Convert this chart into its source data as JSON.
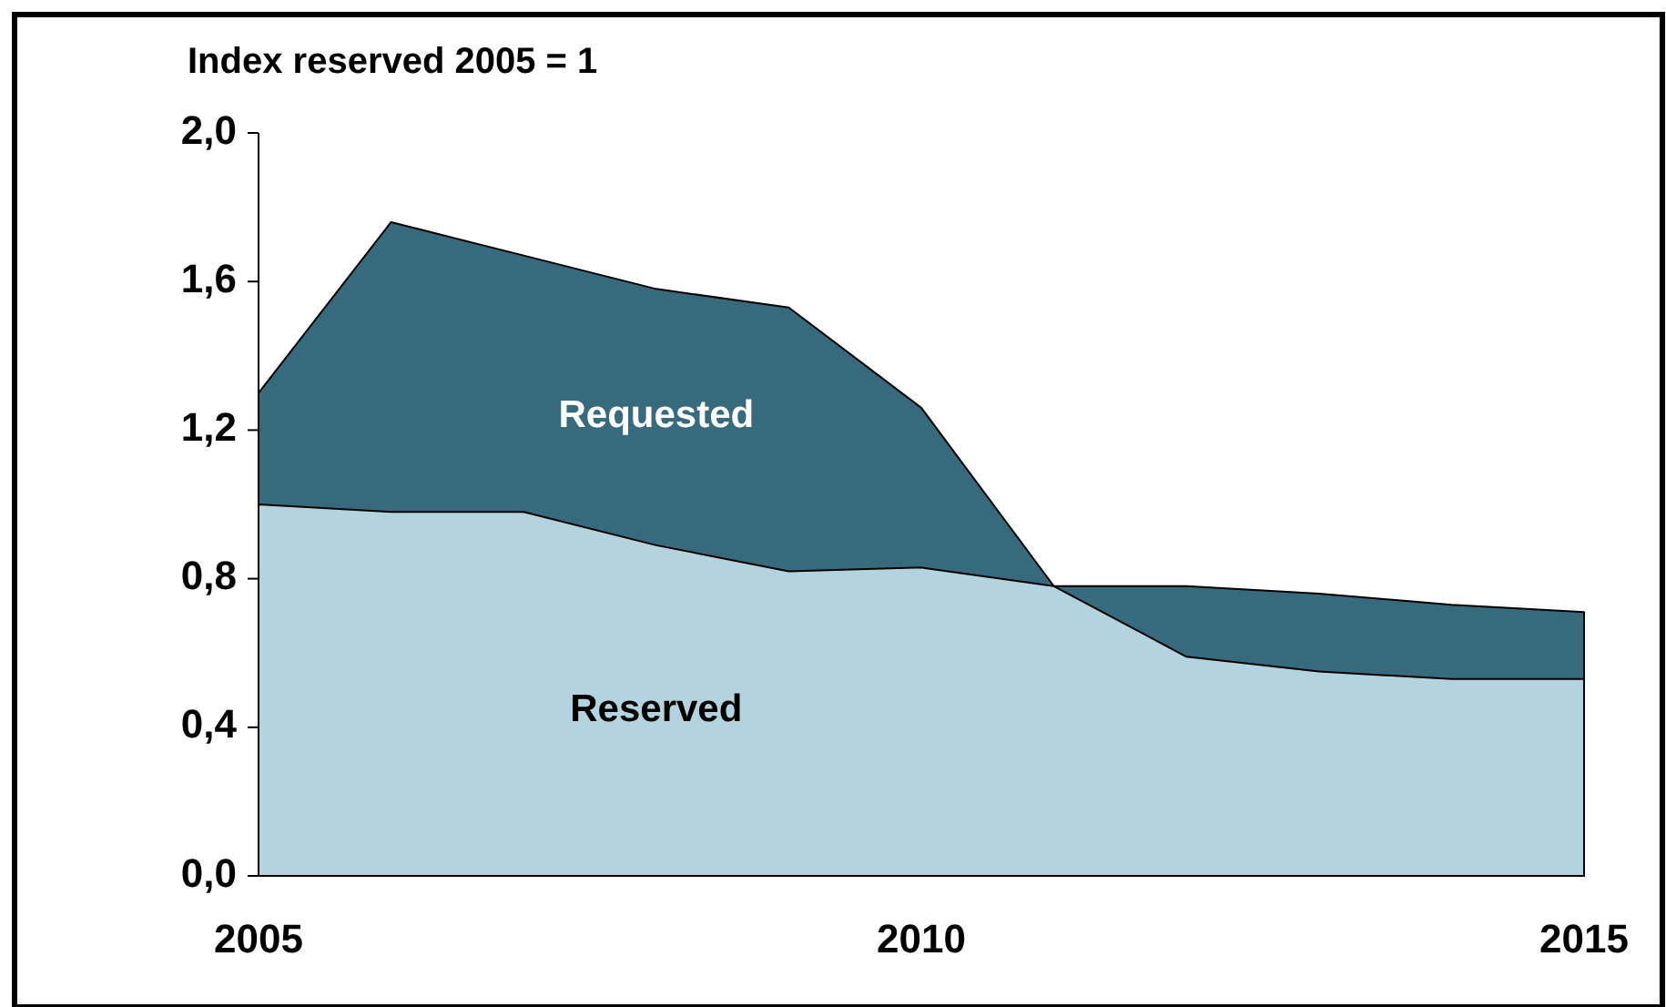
{
  "chart_data": {
    "type": "area",
    "title": "Index reserved 2005 = 1",
    "x": [
      2005,
      2006,
      2007,
      2008,
      2009,
      2010,
      2011,
      2012,
      2013,
      2014,
      2015
    ],
    "series": [
      {
        "name": "Requested",
        "color": "#366a7c",
        "values": [
          1.3,
          1.76,
          1.67,
          1.58,
          1.53,
          1.26,
          0.78,
          0.78,
          0.76,
          0.73,
          0.71
        ]
      },
      {
        "name": "Reserved",
        "color": "#b3d3de",
        "values": [
          1.0,
          0.98,
          0.98,
          0.89,
          0.82,
          0.83,
          0.78,
          0.59,
          0.55,
          0.53,
          0.53
        ]
      }
    ],
    "xlim": [
      2005,
      2015
    ],
    "xticks": [
      2005,
      2010,
      2015
    ],
    "ylim": [
      0,
      2
    ],
    "yticks": [
      {
        "value": 0,
        "label": "0,0"
      },
      {
        "value": 0.4,
        "label": "0,4"
      },
      {
        "value": 0.8,
        "label": "0,8"
      },
      {
        "value": 1.2,
        "label": "1,2"
      },
      {
        "value": 1.6,
        "label": "1,6"
      },
      {
        "value": 2,
        "label": "2,0"
      }
    ],
    "grid": false
  }
}
